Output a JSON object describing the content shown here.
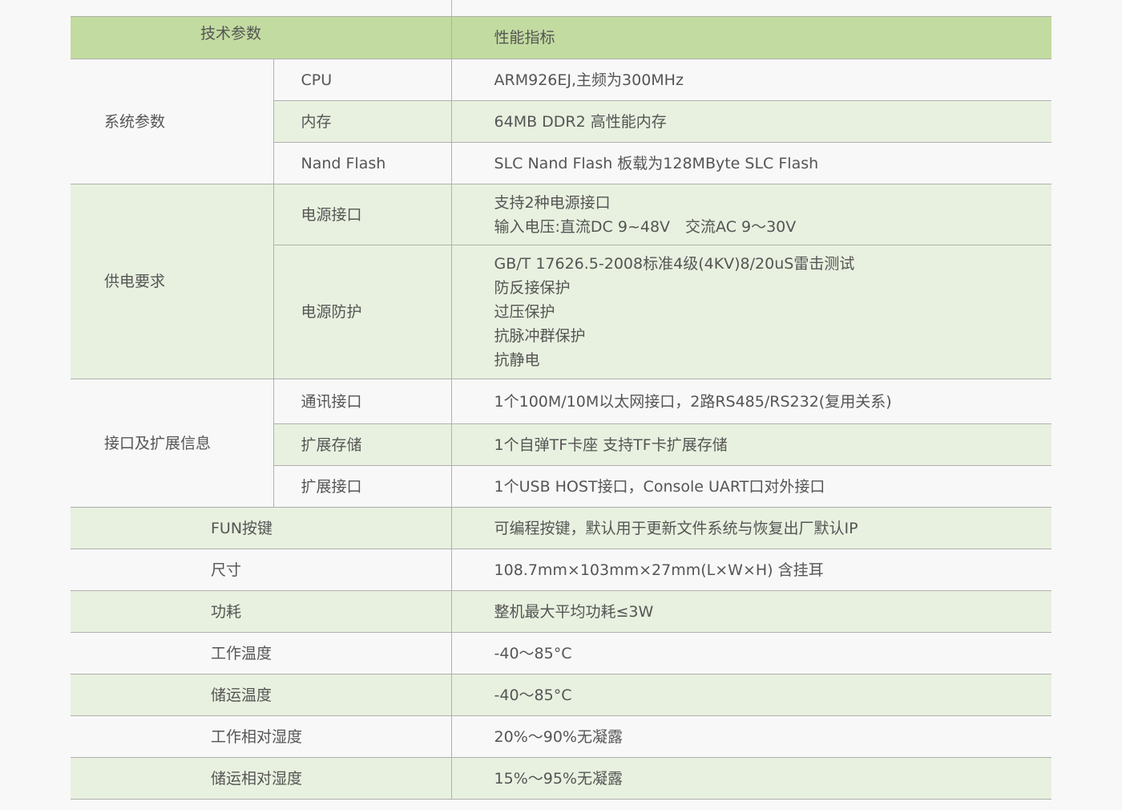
{
  "header": {
    "param": "技术参数",
    "spec": "性能指标"
  },
  "colors": {
    "header_bg": "#c2dba0",
    "alt_row_bg": "#e8f1df",
    "row_bg": "#f8f8f8",
    "border": "#b0b0b0",
    "text": "#555555"
  },
  "groups": [
    {
      "label": "系统参数",
      "bg": "w",
      "rows": [
        {
          "name": "CPU",
          "bg": "w",
          "h": 52,
          "lines": [
            "ARM926EJ,主频为300MHz"
          ]
        },
        {
          "name": "内存",
          "bg": "g",
          "h": 52,
          "lines": [
            "64MB DDR2 高性能内存"
          ]
        },
        {
          "name": "Nand Flash",
          "bg": "w",
          "h": 52,
          "lines": [
            "SLC Nand Flash 板载为128MByte SLC Flash"
          ]
        }
      ]
    },
    {
      "label": "供电要求",
      "bg": "g",
      "rows": [
        {
          "name": "电源接口",
          "bg": "g",
          "h": 76,
          "lines": [
            "支持2种电源接口",
            "输入电压:直流DC 9~48V　交流AC 9～30V"
          ]
        },
        {
          "name": "电源防护",
          "bg": "g",
          "h": 167,
          "lines": [
            "GB/T 17626.5-2008标准4级(4KV)8/20uS雷击测试",
            "防反接保护",
            "过压保护",
            "抗脉冲群保护",
            "抗静电"
          ]
        }
      ]
    },
    {
      "label": "接口及扩展信息",
      "bg": "w",
      "rows": [
        {
          "name": "通讯接口",
          "bg": "w",
          "h": 56,
          "lines": [
            "1个100M/10M以太网接口，2路RS485/RS232(复用关系)"
          ]
        },
        {
          "name": "扩展存储",
          "bg": "g",
          "h": 52,
          "lines": [
            "1个自弹TF卡座 支持TF卡扩展存储"
          ]
        },
        {
          "name": "扩展接口",
          "bg": "w",
          "h": 52,
          "lines": [
            "1个USB HOST接口，Console UART口对外接口"
          ]
        }
      ]
    }
  ],
  "single_rows": [
    {
      "name": "FUN按键",
      "bg": "g",
      "value": "可编程按键，默认用于更新文件系统与恢复出厂默认IP"
    },
    {
      "name": "尺寸",
      "bg": "w",
      "value": "108.7mm×103mm×27mm(L×W×H) 含挂耳"
    },
    {
      "name": "功耗",
      "bg": "g",
      "value": "整机最大平均功耗≤3W"
    },
    {
      "name": "工作温度",
      "bg": "w",
      "value": "-40～85°C"
    },
    {
      "name": "储运温度",
      "bg": "g",
      "value": "-40～85°C"
    },
    {
      "name": "工作相对湿度",
      "bg": "w",
      "value": "20%～90%无凝露"
    },
    {
      "name": "储运相对湿度",
      "bg": "g",
      "value": "15%～95%无凝露"
    }
  ]
}
